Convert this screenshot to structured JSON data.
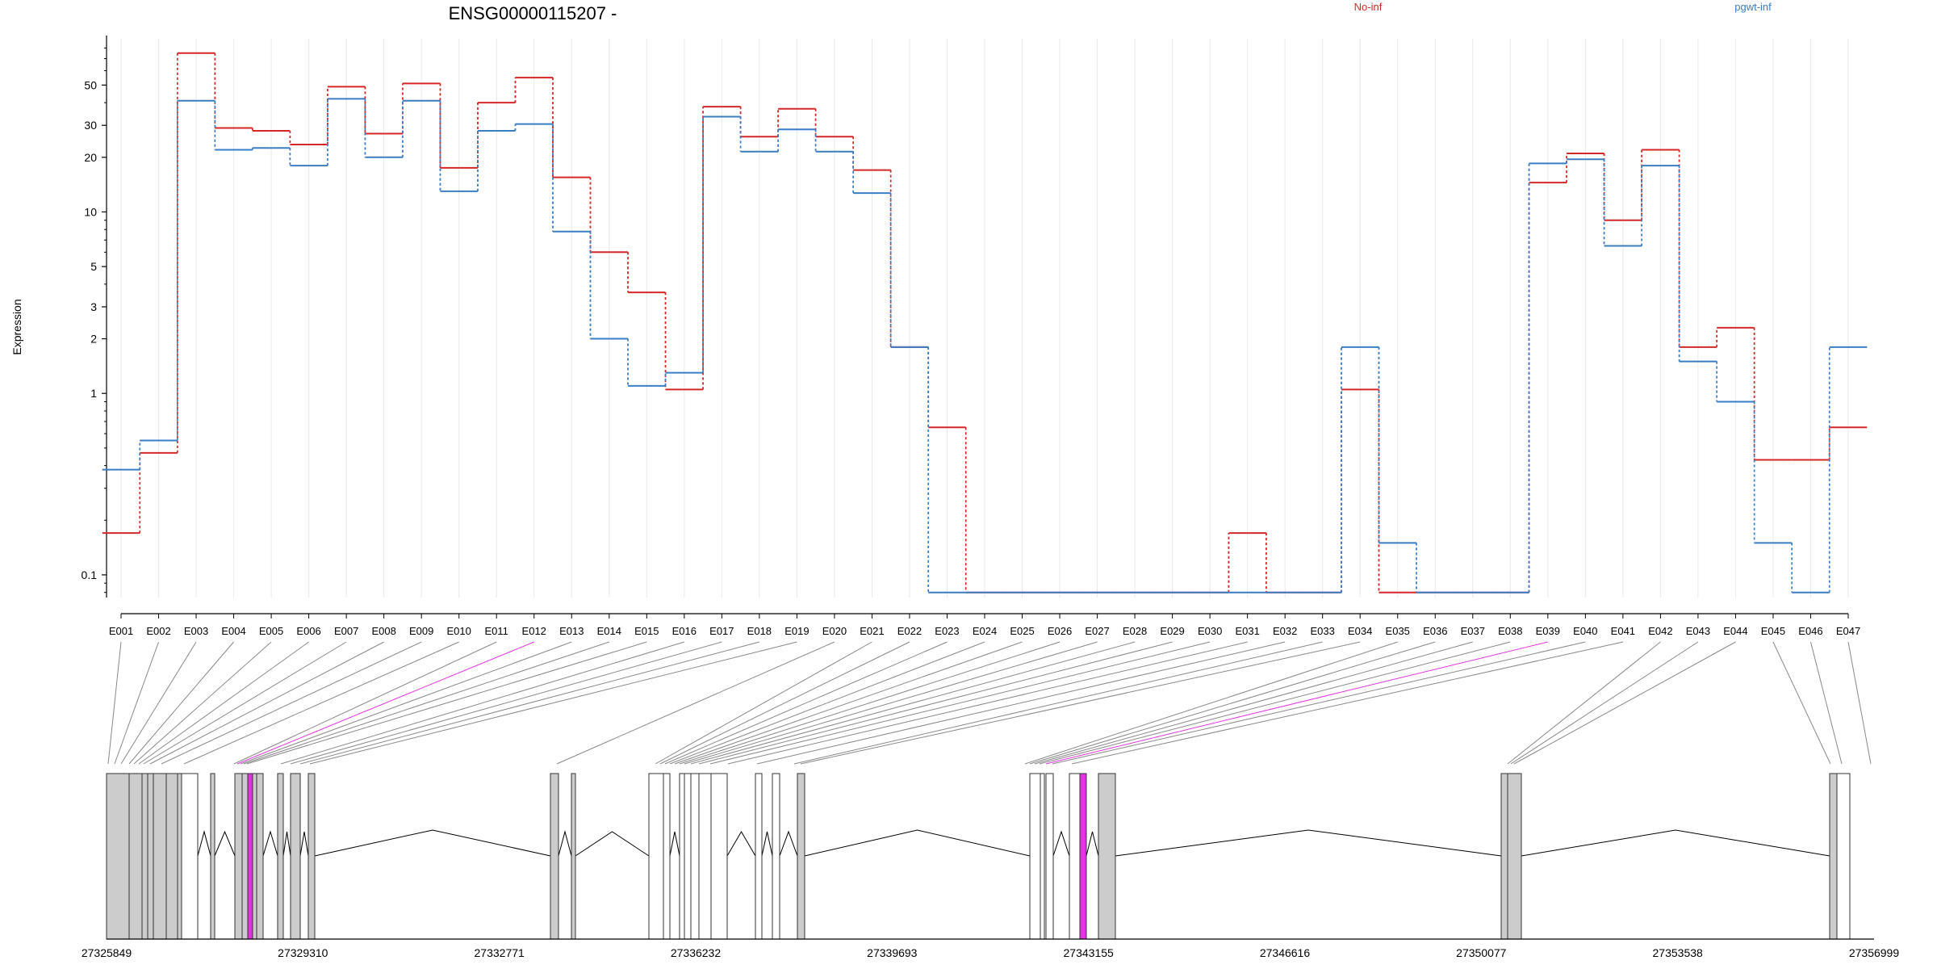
{
  "chart_data": {
    "type": "line",
    "title": "ENSG00000115207 -",
    "ylabel": "Expression",
    "xlabel": "",
    "y_scale": "log",
    "ylim": [
      0.075,
      90
    ],
    "grid": "vertical",
    "legend_placement": "top",
    "y_ticks": [
      0.1,
      1,
      2,
      3,
      5,
      10,
      20,
      30,
      50
    ],
    "y_tick_labels": [
      "0.1",
      "1",
      "2",
      "3",
      "5",
      "10",
      "20",
      "30",
      "50"
    ],
    "categories": [
      "E001",
      "E002",
      "E003",
      "E004",
      "E005",
      "E006",
      "E007",
      "E008",
      "E009",
      "E010",
      "E011",
      "E012",
      "E013",
      "E014",
      "E015",
      "E016",
      "E017",
      "E018",
      "E019",
      "E020",
      "E021",
      "E022",
      "E023",
      "E024",
      "E025",
      "E026",
      "E027",
      "E028",
      "E029",
      "E030",
      "E031",
      "E032",
      "E033",
      "E034",
      "E035",
      "E036",
      "E037",
      "E038",
      "E039",
      "E040",
      "E041",
      "E042",
      "E043",
      "E044",
      "E045",
      "E046",
      "E047"
    ],
    "series": [
      {
        "name": "No-inf",
        "color": "#d62728",
        "values": [
          0.17,
          0.47,
          75,
          29,
          28,
          23.5,
          49,
          27,
          51,
          17.5,
          40,
          55,
          15.5,
          6,
          3.6,
          1.05,
          38,
          26,
          37,
          26,
          17,
          1.8,
          0.65,
          0.08,
          0.08,
          0.08,
          0.08,
          0.08,
          0.08,
          0.08,
          0.17,
          0.08,
          0.08,
          1.05,
          0.08,
          0.08,
          0.08,
          0.08,
          14.5,
          21,
          9,
          22,
          1.8,
          2.3,
          0.43,
          0.43,
          0.65
        ]
      },
      {
        "name": "pgwt-inf",
        "color": "#3a7dc4",
        "values": [
          0.38,
          0.55,
          41,
          22,
          22.5,
          18,
          42,
          20,
          41,
          13,
          28,
          30.5,
          7.8,
          2,
          1.1,
          1.3,
          33.5,
          21.5,
          28.5,
          21.5,
          12.7,
          1.8,
          0.08,
          0.08,
          0.08,
          0.08,
          0.08,
          0.08,
          0.08,
          0.08,
          0.08,
          0.08,
          0.08,
          1.8,
          0.15,
          0.08,
          0.08,
          0.08,
          18.5,
          19.5,
          6.5,
          18,
          1.5,
          0.9,
          0.15,
          0.08,
          1.8
        ]
      }
    ],
    "gene_model": {
      "axis_ticks": [
        "27325849",
        "27329310",
        "27332771",
        "27336232",
        "27339693",
        "27343155",
        "27346616",
        "27350077",
        "27353538",
        "27356999"
      ],
      "genomic_range": [
        27325849,
        27356999
      ],
      "exon_fill": "#cccccc",
      "highlight_color": "#e233e0",
      "exon_genomic_starts": [
        27325849,
        27326130,
        27326300,
        27326450,
        27326550,
        27326720,
        27326900,
        27327200,
        27327350,
        27328150,
        27328350,
        27328500,
        27328700,
        27328840,
        27329030,
        27329680,
        27330200,
        27330450,
        27335060,
        27335400,
        27336900,
        27337200,
        27337900,
        27338100,
        27338300,
        27338600,
        27338800,
        27338950,
        27340900,
        27341250,
        27342900,
        27343150,
        27343500,
        27343800,
        27343950,
        27344250,
        27351700,
        27352100,
        27357300,
        27357500,
        27357700,
        27357900,
        27358200,
        27358600,
        27357300,
        27357900,
        27358300
      ],
      "exons_gray": [
        true,
        true,
        true,
        true,
        true,
        true,
        true,
        false,
        true,
        true,
        true,
        true,
        true,
        true,
        true,
        true,
        true,
        true,
        true,
        false,
        false,
        false,
        false,
        false,
        false,
        false,
        false,
        false,
        true,
        false,
        false,
        false,
        false,
        false,
        true,
        true,
        true,
        true,
        false,
        false,
        false,
        false,
        false,
        false,
        false,
        false,
        true
      ],
      "highlight_exons": [
        "E012",
        "E033"
      ]
    }
  }
}
